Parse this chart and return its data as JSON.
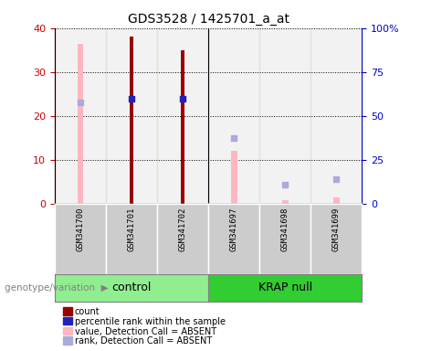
{
  "title": "GDS3528 / 1425701_a_at",
  "samples": [
    "GSM341700",
    "GSM341701",
    "GSM341702",
    "GSM341697",
    "GSM341698",
    "GSM341699"
  ],
  "groups": [
    "control",
    "control",
    "control",
    "KRAP null",
    "KRAP null",
    "KRAP null"
  ],
  "group_labels": [
    "control",
    "KRAP null"
  ],
  "control_color": "#90EE90",
  "krap_color": "#32CD32",
  "count_values": [
    null,
    38.0,
    35.0,
    null,
    null,
    null
  ],
  "rank_values_right": [
    null,
    60.0,
    60.0,
    null,
    null,
    null
  ],
  "absent_value": [
    36.5,
    null,
    null,
    12.0,
    0.8,
    1.5
  ],
  "absent_rank_right": [
    57.5,
    null,
    null,
    37.5,
    11.0,
    14.0
  ],
  "ylim_left": [
    0,
    40
  ],
  "ylim_right": [
    0,
    100
  ],
  "yticks_left": [
    0,
    10,
    20,
    30,
    40
  ],
  "yticks_right": [
    0,
    25,
    50,
    75,
    100
  ],
  "left_color": "#CC0000",
  "right_color": "#0000CC",
  "absent_bar_color": "#FFB6C1",
  "absent_rank_color": "#AAAADD",
  "count_color": "#990000",
  "rank_dot_color": "#2222BB",
  "dot_size": 25,
  "col_bg_color": "#CCCCCC",
  "legend_items": [
    {
      "color": "#990000",
      "label": "count"
    },
    {
      "color": "#2222BB",
      "label": "percentile rank within the sample"
    },
    {
      "color": "#FFB6C1",
      "label": "value, Detection Call = ABSENT"
    },
    {
      "color": "#AAAADD",
      "label": "rank, Detection Call = ABSENT"
    }
  ]
}
